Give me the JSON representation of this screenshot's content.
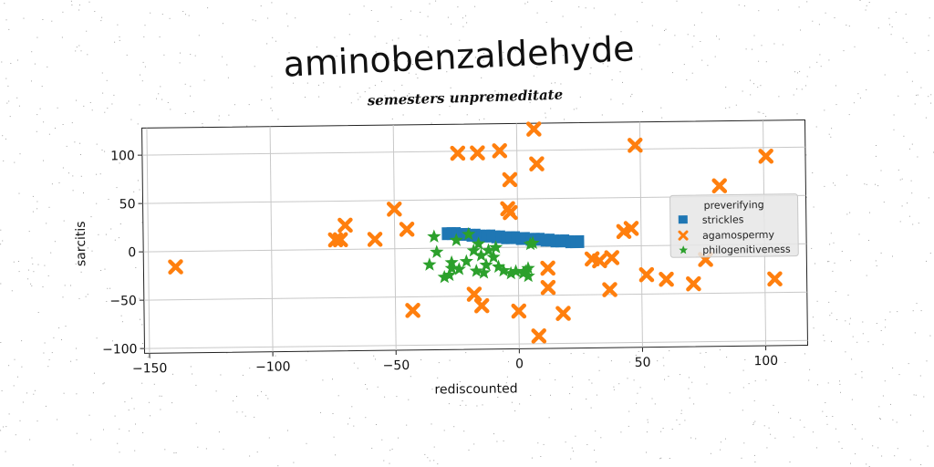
{
  "chart_data": {
    "type": "scatter",
    "title": "aminobenzaldehyde",
    "subtitle": "semesters unpremeditate",
    "xlabel": "rediscounted",
    "ylabel": "sarcitis",
    "xlim": [
      -152,
      117
    ],
    "ylim": [
      -105,
      128
    ],
    "xticks": [
      -150,
      -100,
      -50,
      0,
      50,
      100
    ],
    "yticks": [
      -100,
      -50,
      0,
      50,
      100
    ],
    "xtick_labels": [
      "−150",
      "−100",
      "−50",
      "0",
      "50",
      "100"
    ],
    "ytick_labels": [
      "−100",
      "−50",
      "0",
      "50",
      "100"
    ],
    "grid": true,
    "legend": {
      "title": "preverifying",
      "placement": "right"
    },
    "series": [
      {
        "name": "strickles",
        "marker": "square",
        "color": "#1f77b4",
        "points": [
          [
            -29,
            15
          ],
          [
            -27,
            15
          ],
          [
            -25,
            15
          ],
          [
            -23,
            14
          ],
          [
            -21,
            14
          ],
          [
            -19,
            13
          ],
          [
            -17,
            13
          ],
          [
            -15,
            12
          ],
          [
            -13,
            12
          ],
          [
            -11,
            12
          ],
          [
            -9,
            11
          ],
          [
            -7,
            11
          ],
          [
            -5,
            10
          ],
          [
            -3,
            10
          ],
          [
            -1,
            10
          ],
          [
            1,
            9
          ],
          [
            3,
            9
          ],
          [
            5,
            8
          ],
          [
            7,
            8
          ],
          [
            9,
            8
          ],
          [
            11,
            7
          ],
          [
            13,
            7
          ],
          [
            15,
            6
          ],
          [
            17,
            6
          ],
          [
            19,
            6
          ],
          [
            21,
            5
          ],
          [
            23,
            5
          ],
          [
            25,
            5
          ]
        ]
      },
      {
        "name": "agamospermy",
        "marker": "x",
        "color": "#ff7f0e",
        "points": [
          [
            -139,
            -16
          ],
          [
            -74,
            10
          ],
          [
            -72,
            10
          ],
          [
            -70,
            25
          ],
          [
            -58,
            10
          ],
          [
            -50,
            41
          ],
          [
            -45,
            20
          ],
          [
            -43,
            -64
          ],
          [
            -24,
            98
          ],
          [
            -18,
            -48
          ],
          [
            -16,
            98
          ],
          [
            -15,
            -60
          ],
          [
            -7,
            100
          ],
          [
            -4,
            40
          ],
          [
            -3,
            36
          ],
          [
            -3,
            70
          ],
          [
            0,
            -66
          ],
          [
            7,
            122
          ],
          [
            8,
            86
          ],
          [
            8,
            -92
          ],
          [
            12,
            -22
          ],
          [
            12,
            -42
          ],
          [
            18,
            -69
          ],
          [
            30,
            -13
          ],
          [
            33,
            -15
          ],
          [
            37,
            -45
          ],
          [
            38,
            -12
          ],
          [
            43,
            15
          ],
          [
            46,
            18
          ],
          [
            48,
            104
          ],
          [
            52,
            -30
          ],
          [
            60,
            -35
          ],
          [
            71,
            -40
          ],
          [
            76,
            -15
          ],
          [
            82,
            61
          ],
          [
            101,
            91
          ],
          [
            104,
            -36
          ]
        ]
      },
      {
        "name": "philogenitiveness",
        "marker": "star",
        "color": "#2ca02c",
        "points": [
          [
            -36,
            -17
          ],
          [
            -34,
            12
          ],
          [
            -33,
            -4
          ],
          [
            -30,
            -30
          ],
          [
            -28,
            -28
          ],
          [
            -27,
            -21
          ],
          [
            -27,
            -15
          ],
          [
            -25,
            8
          ],
          [
            -24,
            -22
          ],
          [
            -21,
            -14
          ],
          [
            -20,
            14
          ],
          [
            -18,
            -3
          ],
          [
            -17,
            -24
          ],
          [
            -16,
            4
          ],
          [
            -15,
            -8
          ],
          [
            -14,
            -26
          ],
          [
            -13,
            -18
          ],
          [
            -12,
            -3
          ],
          [
            -10,
            -10
          ],
          [
            -9,
            0
          ],
          [
            -8,
            -20
          ],
          [
            -6,
            -24
          ],
          [
            -3,
            -27
          ],
          [
            -1,
            -25
          ],
          [
            2,
            -27
          ],
          [
            3,
            -25
          ],
          [
            4,
            -30
          ],
          [
            5,
            3
          ],
          [
            6,
            4
          ],
          [
            4,
            -22
          ]
        ]
      }
    ]
  }
}
